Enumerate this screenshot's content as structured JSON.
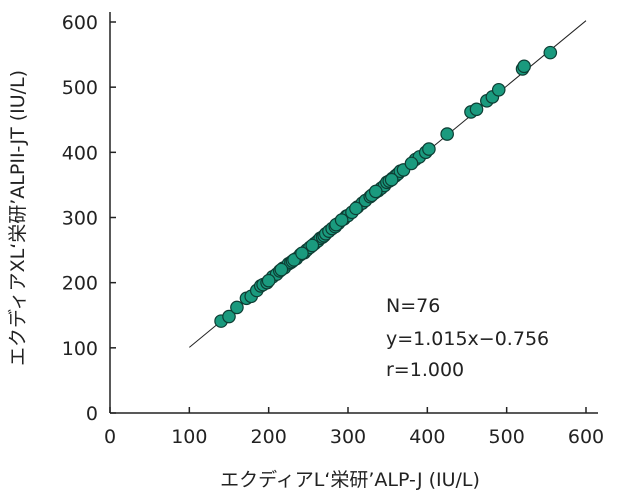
{
  "chart_data": {
    "type": "scatter",
    "xlabel": "エクディアL‘栄研’ALP-J (IU/L)",
    "ylabel": "エクディアXL‘栄研’ALPII-JT (IU/L)",
    "xlim": [
      0,
      600
    ],
    "ylim": [
      0,
      600
    ],
    "x_ticks": [
      0,
      100,
      200,
      300,
      400,
      500,
      600
    ],
    "y_ticks": [
      0,
      100,
      200,
      300,
      400,
      500,
      600
    ],
    "x_tick_labels": [
      "0",
      "100",
      "200",
      "300",
      "400",
      "500",
      "600"
    ],
    "y_tick_labels": [
      "0",
      "100",
      "200",
      "300",
      "400",
      "500",
      "600"
    ],
    "grid": false,
    "regression_line": {
      "slope": 1.015,
      "intercept": -0.756,
      "x_range": [
        100,
        600
      ]
    },
    "annotations": [
      "N=76",
      "y=1.015x−0.756",
      "r=1.000"
    ],
    "point_color": "#1a9a7e",
    "point_edge_color": "#0d3d33",
    "points": [
      [
        140,
        141
      ],
      [
        150,
        148
      ],
      [
        172,
        176
      ],
      [
        178,
        179
      ],
      [
        185,
        188
      ],
      [
        190,
        195
      ],
      [
        193,
        197
      ],
      [
        205,
        209
      ],
      [
        210,
        213
      ],
      [
        214,
        218
      ],
      [
        218,
        222
      ],
      [
        220,
        223
      ],
      [
        225,
        229
      ],
      [
        228,
        231
      ],
      [
        230,
        233
      ],
      [
        235,
        237
      ],
      [
        240,
        243
      ],
      [
        245,
        246
      ],
      [
        248,
        250
      ],
      [
        252,
        254
      ],
      [
        258,
        260
      ],
      [
        262,
        264
      ],
      [
        265,
        268
      ],
      [
        268,
        270
      ],
      [
        270,
        272
      ],
      [
        272,
        275
      ],
      [
        276,
        279
      ],
      [
        280,
        283
      ],
      [
        284,
        286
      ],
      [
        288,
        291
      ],
      [
        295,
        298
      ],
      [
        298,
        302
      ],
      [
        300,
        303
      ],
      [
        305,
        308
      ],
      [
        312,
        316
      ],
      [
        318,
        322
      ],
      [
        322,
        326
      ],
      [
        328,
        332
      ],
      [
        334,
        338
      ],
      [
        338,
        341
      ],
      [
        342,
        345
      ],
      [
        346,
        349
      ],
      [
        349,
        354
      ],
      [
        352,
        356
      ],
      [
        356,
        360
      ],
      [
        360,
        364
      ],
      [
        363,
        367
      ],
      [
        366,
        371
      ],
      [
        370,
        373
      ],
      [
        385,
        389
      ],
      [
        390,
        393
      ],
      [
        398,
        400
      ],
      [
        402,
        405
      ],
      [
        425,
        428
      ],
      [
        455,
        462
      ],
      [
        462,
        466
      ],
      [
        475,
        479
      ],
      [
        482,
        485
      ],
      [
        490,
        496
      ],
      [
        520,
        528
      ],
      [
        522,
        532
      ],
      [
        555,
        553
      ],
      [
        160,
        162
      ],
      [
        198,
        200
      ],
      [
        232,
        235
      ],
      [
        255,
        257
      ],
      [
        285,
        289
      ],
      [
        310,
        314
      ],
      [
        330,
        334
      ],
      [
        355,
        358
      ],
      [
        380,
        383
      ],
      [
        200,
        203
      ],
      [
        216,
        220
      ],
      [
        242,
        245
      ],
      [
        292,
        296
      ],
      [
        335,
        340
      ]
    ]
  }
}
